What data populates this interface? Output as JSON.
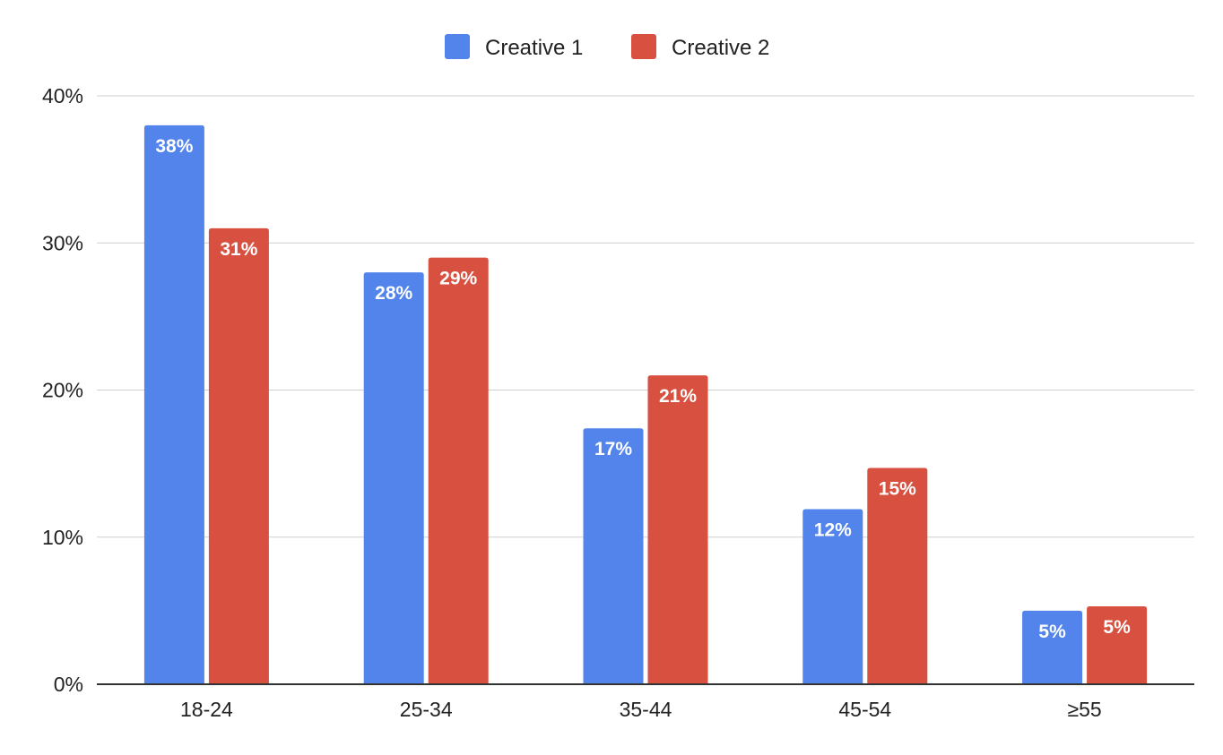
{
  "chart_data": {
    "type": "bar",
    "title": "",
    "xlabel": "",
    "ylabel": "",
    "categories": [
      "18-24",
      "25-34",
      "35-44",
      "45-54",
      "≥55"
    ],
    "series": [
      {
        "name": "Creative 1",
        "color": "#5284EC",
        "values": [
          0.38,
          0.28,
          0.174,
          0.119,
          0.05
        ],
        "labels": [
          "38%",
          "28%",
          "17%",
          "12%",
          "5%"
        ]
      },
      {
        "name": "Creative 2",
        "color": "#D85140",
        "values": [
          0.31,
          0.29,
          0.21,
          0.147,
          0.053
        ],
        "labels": [
          "31%",
          "29%",
          "21%",
          "15%",
          "5%"
        ]
      }
    ],
    "ylim": [
      0,
      0.4
    ],
    "y_ticks": [
      {
        "value": 0,
        "label": "0%"
      },
      {
        "value": 0.1,
        "label": "10%"
      },
      {
        "value": 0.2,
        "label": "20%"
      },
      {
        "value": 0.3,
        "label": "30%"
      },
      {
        "value": 0.4,
        "label": "40%"
      }
    ],
    "grid": true,
    "legend_position": "top-center",
    "data_labels": "inside-top"
  }
}
